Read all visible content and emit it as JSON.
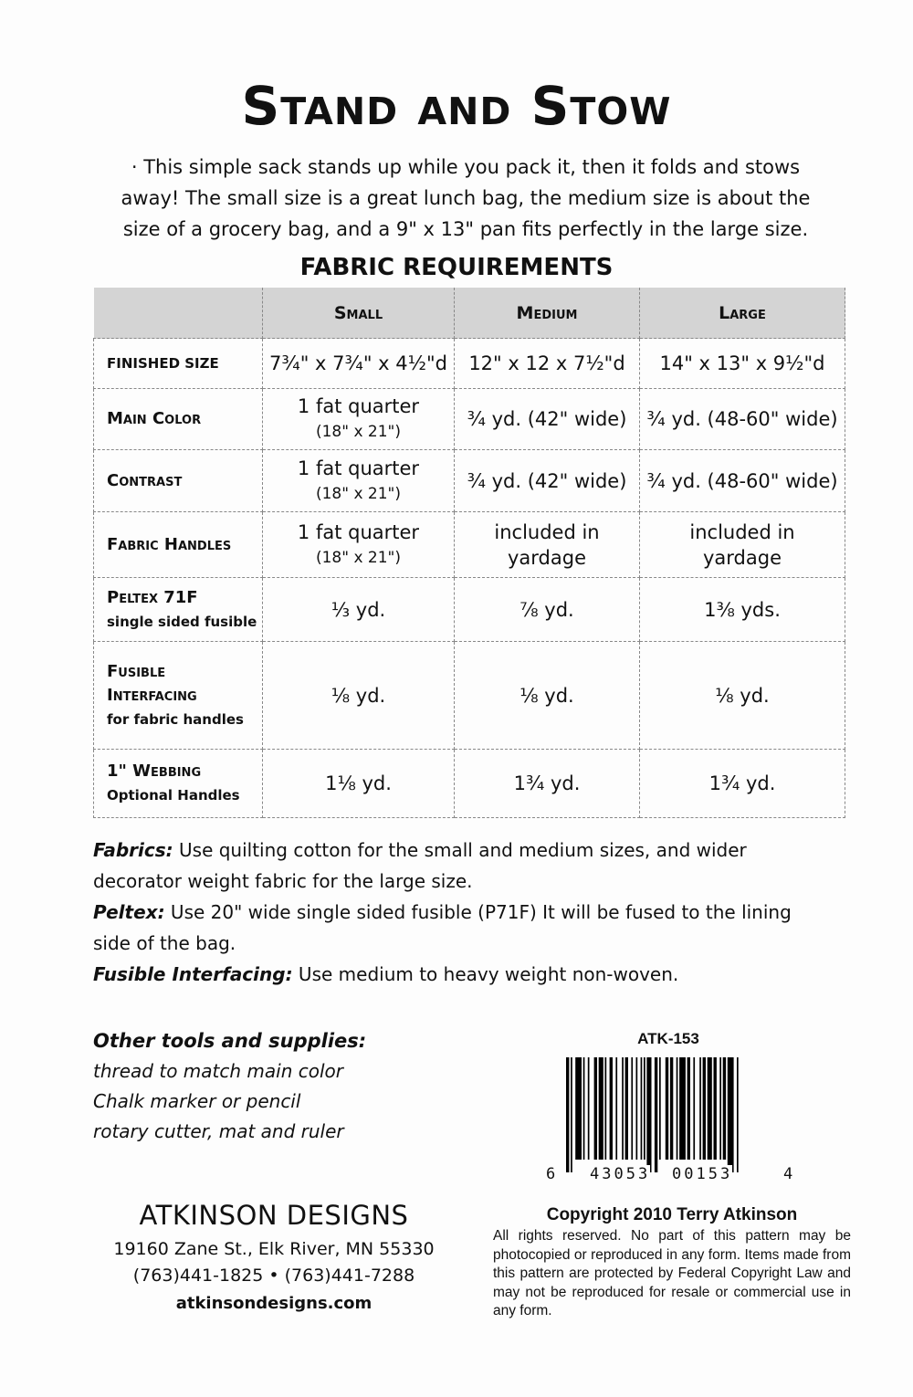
{
  "title": "Stand and Stow",
  "intro": "· This simple sack stands up while you pack it, then it folds and stows away! The small size is a great lunch bag, the medium size is about the size of a grocery bag, and a 9\" x 13\" pan fits perfectly in the large size.",
  "fabric_heading": "FABRIC REQUIREMENTS",
  "table": {
    "columns": [
      "",
      "Small",
      "Medium",
      "Large"
    ],
    "rows": [
      {
        "label": "finished size",
        "sub": "",
        "cells": [
          [
            "7¾\" x 7¾\" x 4½\"d",
            ""
          ],
          [
            "12\" x 12 x 7½\"d",
            ""
          ],
          [
            "14\" x 13\" x 9½\"d",
            ""
          ]
        ]
      },
      {
        "label": "Main Color",
        "sub": "",
        "cells": [
          [
            "1 fat quarter",
            "(18\" x 21\")"
          ],
          [
            "¾ yd. (42\" wide)",
            ""
          ],
          [
            "¾ yd. (48-60\" wide)",
            ""
          ]
        ]
      },
      {
        "label": "Contrast",
        "sub": "",
        "cells": [
          [
            "1 fat quarter",
            "(18\" x 21\")"
          ],
          [
            "¾ yd. (42\" wide)",
            ""
          ],
          [
            "¾ yd. (48-60\" wide)",
            ""
          ]
        ]
      },
      {
        "label": "Fabric Handles",
        "sub": "",
        "cells": [
          [
            "1 fat quarter",
            "(18\" x 21\")"
          ],
          [
            "included in",
            "yardage"
          ],
          [
            "included in",
            "yardage"
          ]
        ]
      },
      {
        "label": "Peltex 71F",
        "sub": "single sided fusible",
        "cells": [
          [
            "⅓ yd.",
            ""
          ],
          [
            "⅞ yd.",
            ""
          ],
          [
            "1⅜ yds.",
            ""
          ]
        ]
      },
      {
        "label": "Fusible Interfacing",
        "sub": "for fabric handles",
        "cells": [
          [
            "⅛ yd.",
            ""
          ],
          [
            "⅛ yd.",
            ""
          ],
          [
            "⅛ yd.",
            ""
          ]
        ]
      },
      {
        "label": "1\" Webbing",
        "sub": "Optional Handles",
        "cells": [
          [
            "1⅛ yd.",
            ""
          ],
          [
            "1¾ yd.",
            ""
          ],
          [
            "1¾ yd.",
            ""
          ]
        ]
      }
    ]
  },
  "notes": [
    {
      "label": "Fabrics:",
      "text": " Use quilting cotton for the small and medium sizes, and wider decorator weight fabric for the large size."
    },
    {
      "label": "Peltex:",
      "text": " Use 20\" wide single sided fusible (P71F) It will be fused to the lining side of the bag."
    },
    {
      "label": "Fusible Interfacing:",
      "text": " Use medium to heavy weight non-woven."
    }
  ],
  "supplies": {
    "heading": "Other tools and supplies:",
    "items": [
      "thread to match main color",
      "Chalk marker or pencil",
      "rotary cutter, mat and ruler"
    ]
  },
  "sku": "ATK-153",
  "upc": {
    "first": "6",
    "left": "43053",
    "right": "00153",
    "last": "4"
  },
  "company": {
    "name": "ATKINSON DESIGNS",
    "address": "19160 Zane St.,  Elk River, MN 55330",
    "phones": "(763)441-1825 • (763)441-7288",
    "website": "atkinsondesigns.com"
  },
  "copyright": {
    "heading": "Copyright 2010 Terry Atkinson",
    "body": "All rights reserved. No part of this pattern may be photocopied or reproduced in any form. Items made from this pattern are protected by Federal Copyright Law and may not be reproduced for resale or commercial use in any form."
  }
}
